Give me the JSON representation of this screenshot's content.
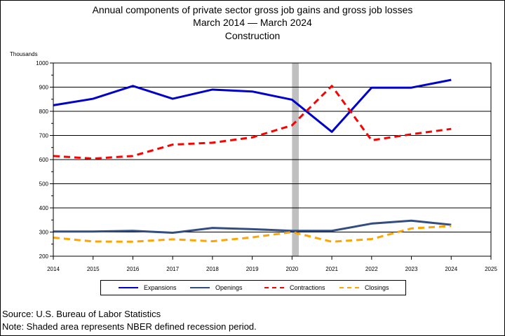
{
  "title_lines": [
    "Annual components of private sector gross job gains and gross job losses",
    "March 2014 — March 2024",
    "Construction"
  ],
  "footer": {
    "source": "Source: U.S. Bureau of Labor Statistics",
    "note": "Note: Shaded area represents NBER defined recession period."
  },
  "chart_data": {
    "type": "line",
    "ylabel": "Thousands",
    "xlim": [
      2014,
      2025
    ],
    "ylim": [
      200,
      1000
    ],
    "x_ticks": [
      2014,
      2015,
      2016,
      2017,
      2018,
      2019,
      2020,
      2021,
      2022,
      2023,
      2024,
      2025
    ],
    "y_ticks": [
      200,
      300,
      400,
      500,
      600,
      700,
      800,
      900,
      1000
    ],
    "grid": true,
    "legend_position": "bottom",
    "recession_shading": [
      2020.0,
      2020.17
    ],
    "series": [
      {
        "name": "Expansions",
        "color": "#0000cc",
        "style": "solid",
        "x": [
          2014,
          2015,
          2016,
          2017,
          2018,
          2019,
          2020,
          2021,
          2022,
          2023,
          2024
        ],
        "values": [
          825,
          852,
          905,
          852,
          890,
          882,
          848,
          715,
          898,
          898,
          930
        ]
      },
      {
        "name": "Openings",
        "color": "#334d80",
        "style": "solid",
        "x": [
          2014,
          2015,
          2016,
          2017,
          2018,
          2019,
          2020,
          2021,
          2022,
          2023,
          2024
        ],
        "values": [
          302,
          302,
          305,
          297,
          317,
          312,
          305,
          305,
          335,
          347,
          330
        ]
      },
      {
        "name": "Contractions",
        "color": "#ff0000",
        "style": "dashed",
        "x": [
          2014,
          2015,
          2016,
          2017,
          2018,
          2019,
          2020,
          2021,
          2022,
          2023,
          2024
        ],
        "values": [
          615,
          604,
          615,
          662,
          670,
          692,
          742,
          905,
          680,
          705,
          727
        ]
      },
      {
        "name": "Closings",
        "color": "#ffa500",
        "style": "dashed",
        "x": [
          2014,
          2015,
          2016,
          2017,
          2018,
          2019,
          2020,
          2021,
          2022,
          2023,
          2024
        ],
        "values": [
          277,
          261,
          260,
          270,
          262,
          278,
          300,
          260,
          271,
          315,
          325
        ]
      }
    ]
  }
}
